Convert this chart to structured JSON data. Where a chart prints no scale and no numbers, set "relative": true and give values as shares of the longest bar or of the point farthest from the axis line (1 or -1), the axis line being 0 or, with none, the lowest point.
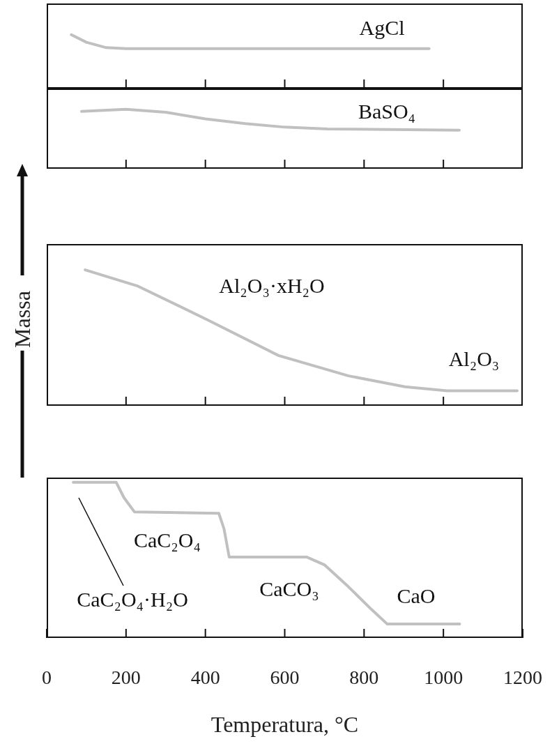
{
  "chart_data": [
    {
      "type": "line",
      "relative": true,
      "xlim": [
        0,
        1200
      ],
      "xticks": [
        0,
        200,
        400,
        600,
        800,
        1000,
        1200
      ],
      "tick_labels": false,
      "grid": false,
      "legend": false,
      "series": [
        {
          "color": "#c0c0c0",
          "x": [
            62,
            100,
            150,
            200,
            400,
            964
          ],
          "values": [
            1,
            0.86,
            0.76,
            0.74,
            0.74,
            0.74
          ]
        }
      ],
      "annotations": [
        "AgCl"
      ]
    },
    {
      "type": "line",
      "relative": true,
      "xlim": [
        0,
        1200
      ],
      "xticks": [
        0,
        200,
        400,
        600,
        800,
        1000,
        1200
      ],
      "tick_labels": false,
      "grid": false,
      "legend": false,
      "series": [
        {
          "color": "#c0c0c0",
          "x": [
            88,
            200,
            300,
            400,
            500,
            600,
            708,
            1040
          ],
          "values": [
            0.965,
            1,
            0.95,
            0.84,
            0.76,
            0.7,
            0.67,
            0.65
          ]
        }
      ],
      "annotations": [
        "BaSO₄"
      ]
    },
    {
      "type": "line",
      "relative": true,
      "xlim": [
        0,
        1200
      ],
      "xticks": [
        0,
        200,
        400,
        600,
        800,
        1000,
        1200
      ],
      "tick_labels": false,
      "grid": false,
      "legend": false,
      "ylabel": "Massa",
      "series": [
        {
          "color": "#c0c0c0",
          "x": [
            97,
            230,
            407,
            584,
            761,
            903,
            1009,
            1186
          ],
          "values": [
            1,
            0.88,
            0.63,
            0.37,
            0.22,
            0.14,
            0.11,
            0.11
          ]
        }
      ],
      "annotations": [
        "Al₂O₃·xH₂O",
        "Al₂O₃"
      ]
    },
    {
      "type": "line",
      "relative": true,
      "xlim": [
        0,
        1200
      ],
      "xticks": [
        0,
        200,
        400,
        600,
        800,
        1000,
        1200
      ],
      "xlabel": "Temperatura, °C",
      "grid": false,
      "legend": false,
      "series": [
        {
          "color": "#c0c0c0",
          "x": [
            67,
            175,
            195,
            221,
            434,
            447,
            460,
            655,
            700,
            760,
            820,
            858,
            1041
          ],
          "values": [
            1,
            1,
            0.9,
            0.81,
            0.8,
            0.7,
            0.52,
            0.52,
            0.47,
            0.33,
            0.18,
            0.09,
            0.09
          ]
        }
      ],
      "annotations": [
        "CaC₂O₄",
        "CaCO₃",
        "CaO",
        "CaC₂O₄·H₂O"
      ]
    }
  ]
}
